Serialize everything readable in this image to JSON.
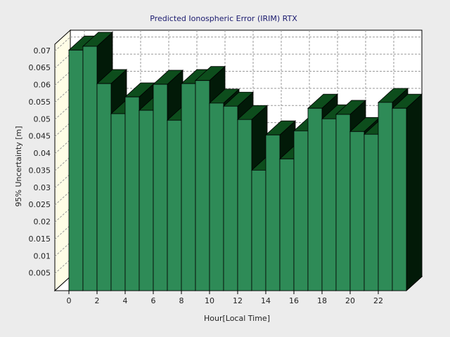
{
  "chart_data": {
    "type": "bar3d",
    "title": "Predicted Ionospheric Error (IRIM) RTX",
    "x_label": "Hour[Local Time]",
    "y_label": "95% Uncertainty [m]",
    "x": [
      0,
      1,
      2,
      3,
      4,
      5,
      6,
      7,
      8,
      9,
      10,
      11,
      12,
      13,
      14,
      15,
      16,
      17,
      18,
      19,
      20,
      21,
      22,
      23
    ],
    "values": [
      0.0703,
      0.0714,
      0.0605,
      0.0517,
      0.0566,
      0.0527,
      0.0603,
      0.0498,
      0.0605,
      0.0614,
      0.0548,
      0.0539,
      0.05,
      0.0352,
      0.0455,
      0.0385,
      0.0467,
      0.0533,
      0.0502,
      0.0515,
      0.0465,
      0.0457,
      0.055,
      0.0533
    ],
    "color": "#2e8b57",
    "xlim": [
      -1,
      24
    ],
    "xticks": [
      0,
      2,
      4,
      6,
      8,
      10,
      12,
      14,
      16,
      18,
      20,
      22
    ],
    "ylim": [
      0,
      0.072
    ],
    "yticks": [
      0.005,
      0.01,
      0.015,
      0.02,
      0.025,
      0.03,
      0.035,
      0.04,
      0.045,
      0.05,
      0.055,
      0.06,
      0.065,
      0.07
    ],
    "grid": true
  }
}
